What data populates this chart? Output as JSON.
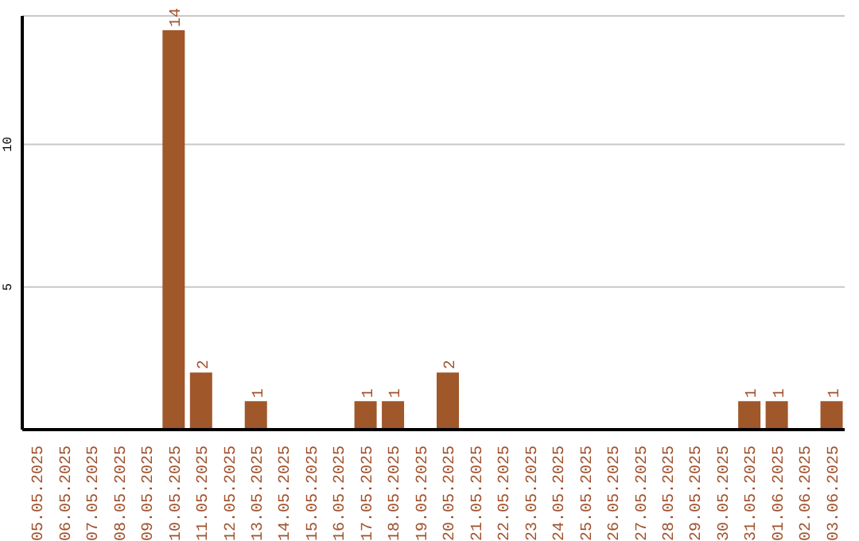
{
  "chart_data": {
    "type": "bar",
    "categories": [
      "05.05.2025",
      "06.05.2025",
      "07.05.2025",
      "08.05.2025",
      "09.05.2025",
      "10.05.2025",
      "11.05.2025",
      "12.05.2025",
      "13.05.2025",
      "14.05.2025",
      "15.05.2025",
      "16.05.2025",
      "17.05.2025",
      "18.05.2025",
      "19.05.2025",
      "20.05.2025",
      "21.05.2025",
      "22.05.2025",
      "23.05.2025",
      "24.05.2025",
      "25.05.2025",
      "26.05.2025",
      "27.05.2025",
      "28.05.2025",
      "29.05.2025",
      "30.05.2025",
      "31.05.2025",
      "01.06.2025",
      "02.06.2025",
      "03.06.2025"
    ],
    "values": [
      0,
      0,
      0,
      0,
      0,
      14,
      2,
      0,
      1,
      0,
      0,
      0,
      1,
      1,
      0,
      2,
      0,
      0,
      0,
      0,
      0,
      0,
      0,
      0,
      0,
      0,
      1,
      1,
      0,
      1
    ],
    "value_labels": [
      null,
      null,
      null,
      null,
      null,
      "14",
      "2",
      null,
      "1",
      null,
      null,
      null,
      "1",
      "1",
      null,
      "2",
      null,
      null,
      null,
      null,
      null,
      null,
      null,
      null,
      null,
      null,
      "1",
      "1",
      null,
      "1"
    ],
    "color": "#a0572a",
    "ylim": [
      0,
      14.5
    ],
    "yticks": [
      5,
      10
    ],
    "grid": "y"
  }
}
